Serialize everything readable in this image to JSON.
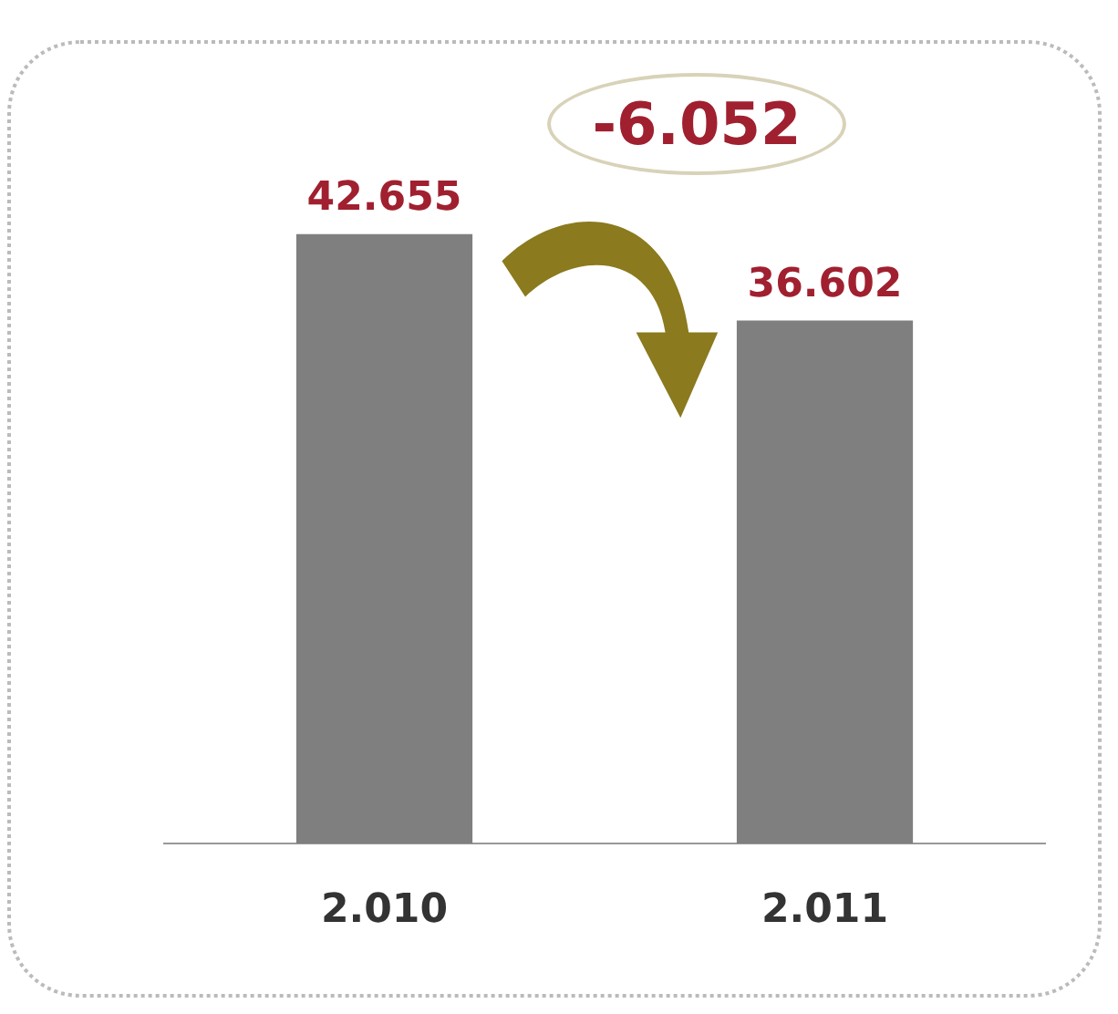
{
  "chart_data": {
    "type": "bar",
    "categories": [
      "2.010",
      "2.011"
    ],
    "values": [
      42655,
      36602
    ],
    "color": "#7f7f7f",
    "value_labels": [
      "42.655",
      "36.602"
    ],
    "annotations": [
      "-6.052"
    ],
    "grid": false,
    "legend": false,
    "tick_labels": "x"
  }
}
